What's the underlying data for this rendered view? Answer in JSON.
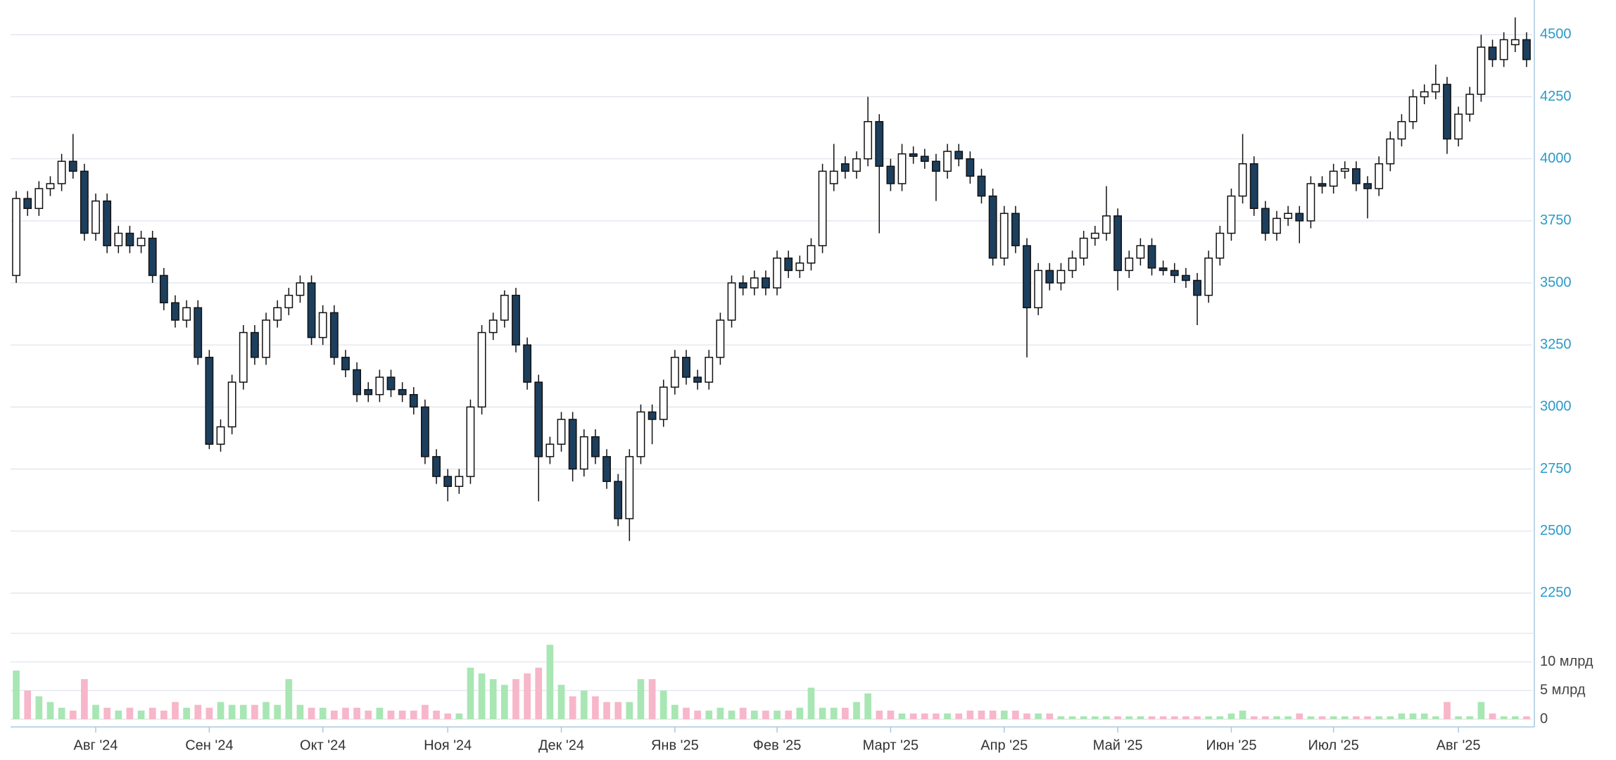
{
  "chart_data": [
    {
      "type": "candlestick",
      "categories": [
        null,
        null,
        null,
        null,
        null,
        null,
        null,
        "Авг '24",
        null,
        null,
        null,
        null,
        null,
        null,
        null,
        null,
        null,
        "Сен '24",
        null,
        null,
        null,
        null,
        null,
        null,
        null,
        null,
        null,
        "Окт '24",
        null,
        null,
        null,
        null,
        null,
        null,
        null,
        null,
        null,
        null,
        "Ноя '24",
        null,
        null,
        null,
        null,
        null,
        null,
        null,
        null,
        null,
        "Дек '24",
        null,
        null,
        null,
        null,
        null,
        null,
        null,
        null,
        null,
        "Янв '25",
        null,
        null,
        null,
        null,
        null,
        null,
        null,
        null,
        "Фев '25",
        null,
        null,
        null,
        null,
        null,
        null,
        null,
        null,
        null,
        "Март '25",
        null,
        null,
        null,
        null,
        null,
        null,
        null,
        null,
        null,
        "Апр '25",
        null,
        null,
        null,
        null,
        null,
        null,
        null,
        null,
        null,
        "Май '25",
        null,
        null,
        null,
        null,
        null,
        null,
        null,
        null,
        null,
        "Июн '25",
        null,
        null,
        null,
        null,
        null,
        null,
        null,
        null,
        "Июл '25",
        null,
        null,
        null,
        null,
        null,
        null,
        null,
        null,
        null,
        null,
        "Авг '25",
        null,
        null,
        null,
        null,
        null,
        null
      ],
      "open": [
        3530,
        3840,
        3800,
        3880,
        3900,
        3990,
        3950,
        3700,
        3830,
        3650,
        3700,
        3650,
        3680,
        3530,
        3420,
        3350,
        3400,
        3200,
        2850,
        2920,
        3100,
        3300,
        3200,
        3350,
        3400,
        3450,
        3500,
        3280,
        3380,
        3200,
        3150,
        3070,
        3050,
        3120,
        3070,
        3050,
        3000,
        2800,
        2720,
        2680,
        2720,
        3000,
        3300,
        3350,
        3450,
        3250,
        3100,
        2800,
        2850,
        2950,
        2750,
        2880,
        2800,
        2700,
        2550,
        2800,
        2980,
        2950,
        3080,
        3200,
        3120,
        3100,
        3200,
        3350,
        3500,
        3480,
        3520,
        3480,
        3600,
        3550,
        3580,
        3650,
        3900,
        3980,
        3950,
        4000,
        4150,
        3970,
        3900,
        4020,
        4010,
        3990,
        3950,
        4030,
        4000,
        3930,
        3850,
        3600,
        3780,
        3650,
        3400,
        3550,
        3500,
        3550,
        3600,
        3680,
        3700,
        3770,
        3550,
        3600,
        3650,
        3560,
        3550,
        3530,
        3510,
        3450,
        3600,
        3700,
        3850,
        3980,
        3800,
        3700,
        3760,
        3780,
        3750,
        3900,
        3890,
        3950,
        3960,
        3900,
        3880,
        3980,
        4080,
        4150,
        4250,
        4270,
        4300,
        4080,
        4180,
        4260,
        4450,
        4400,
        4460,
        4480
      ],
      "high": [
        3870,
        3870,
        3910,
        3930,
        4020,
        4100,
        3980,
        3860,
        3860,
        3730,
        3730,
        3710,
        3710,
        3560,
        3450,
        3430,
        3430,
        3230,
        2950,
        3130,
        3330,
        3330,
        3380,
        3430,
        3480,
        3530,
        3530,
        3410,
        3410,
        3230,
        3180,
        3100,
        3150,
        3150,
        3100,
        3080,
        3030,
        2830,
        2750,
        2750,
        3030,
        3330,
        3380,
        3470,
        3480,
        3280,
        3130,
        2880,
        2980,
        2980,
        2910,
        2910,
        2830,
        2730,
        2830,
        3010,
        3010,
        3110,
        3230,
        3230,
        3150,
        3230,
        3380,
        3530,
        3530,
        3550,
        3550,
        3630,
        3630,
        3610,
        3680,
        3980,
        4060,
        4010,
        4030,
        4250,
        4180,
        4000,
        4060,
        4050,
        4040,
        4020,
        4060,
        4060,
        4030,
        3960,
        3880,
        3810,
        3810,
        3680,
        3580,
        3580,
        3580,
        3630,
        3710,
        3730,
        3890,
        3800,
        3630,
        3680,
        3680,
        3590,
        3580,
        3560,
        3540,
        3630,
        3730,
        3880,
        4100,
        4010,
        3830,
        3790,
        3810,
        3810,
        3930,
        3930,
        3980,
        3990,
        3990,
        3930,
        4010,
        4110,
        4180,
        4280,
        4300,
        4380,
        4330,
        4210,
        4290,
        4500,
        4480,
        4510,
        4570,
        4510
      ],
      "low": [
        3500,
        3770,
        3770,
        3850,
        3870,
        3920,
        3670,
        3670,
        3620,
        3620,
        3620,
        3620,
        3500,
        3390,
        3320,
        3320,
        3170,
        2830,
        2820,
        2890,
        3070,
        3170,
        3170,
        3320,
        3370,
        3420,
        3250,
        3250,
        3170,
        3120,
        3020,
        3020,
        3020,
        3040,
        3020,
        2970,
        2770,
        2690,
        2620,
        2650,
        2690,
        2970,
        3270,
        3320,
        3220,
        3070,
        2620,
        2770,
        2820,
        2700,
        2720,
        2770,
        2670,
        2520,
        2460,
        2770,
        2850,
        2920,
        3050,
        3090,
        3070,
        3070,
        3170,
        3320,
        3450,
        3450,
        3450,
        3450,
        3520,
        3520,
        3550,
        3620,
        3870,
        3920,
        3920,
        3970,
        3700,
        3870,
        3870,
        3980,
        3960,
        3830,
        3920,
        3970,
        3900,
        3820,
        3570,
        3570,
        3620,
        3200,
        3370,
        3470,
        3470,
        3520,
        3570,
        3650,
        3670,
        3470,
        3520,
        3570,
        3530,
        3530,
        3500,
        3480,
        3330,
        3420,
        3570,
        3670,
        3820,
        3770,
        3670,
        3670,
        3730,
        3660,
        3720,
        3860,
        3860,
        3920,
        3870,
        3760,
        3850,
        3950,
        4050,
        4120,
        4220,
        4240,
        4020,
        4050,
        4150,
        4230,
        4370,
        4370,
        4430,
        4370
      ],
      "close": [
        3840,
        3800,
        3880,
        3900,
        3990,
        3950,
        3700,
        3830,
        3650,
        3700,
        3650,
        3680,
        3530,
        3420,
        3350,
        3400,
        3200,
        2850,
        2920,
        3100,
        3300,
        3200,
        3350,
        3400,
        3450,
        3500,
        3280,
        3380,
        3200,
        3150,
        3050,
        3050,
        3120,
        3070,
        3050,
        3000,
        2800,
        2720,
        2680,
        2720,
        3000,
        3300,
        3350,
        3450,
        3250,
        3100,
        2800,
        2850,
        2950,
        2750,
        2880,
        2800,
        2700,
        2550,
        2800,
        2980,
        2950,
        3080,
        3200,
        3120,
        3100,
        3200,
        3350,
        3500,
        3480,
        3520,
        3480,
        3600,
        3550,
        3580,
        3650,
        3950,
        3950,
        3950,
        4000,
        4150,
        3970,
        3900,
        4020,
        4010,
        3990,
        3950,
        4030,
        4000,
        3930,
        3850,
        3600,
        3780,
        3650,
        3400,
        3550,
        3500,
        3550,
        3600,
        3680,
        3700,
        3770,
        3550,
        3600,
        3650,
        3560,
        3550,
        3530,
        3510,
        3450,
        3600,
        3700,
        3850,
        3980,
        3800,
        3700,
        3760,
        3780,
        3750,
        3900,
        3890,
        3950,
        3960,
        3900,
        3880,
        3980,
        4080,
        4150,
        4250,
        4270,
        4300,
        4080,
        4180,
        4260,
        4450,
        4400,
        4480,
        4480,
        4400
      ],
      "ylim": [
        2190,
        4640
      ],
      "yticks": [
        2250,
        2500,
        2750,
        3000,
        3250,
        3500,
        3750,
        4000,
        4250,
        4500
      ],
      "grid": true,
      "up_color": "#ffffff",
      "down_color": "#1d3f5e"
    },
    {
      "type": "bar",
      "values": [
        8.5,
        5,
        4,
        3,
        2,
        1.5,
        7,
        2.5,
        2,
        1.5,
        2,
        1.5,
        2,
        1.5,
        3,
        2,
        2.5,
        2,
        3,
        2.5,
        2.5,
        2.5,
        3,
        2.5,
        7,
        2.5,
        2,
        2,
        1.5,
        2,
        2,
        1.5,
        2,
        1.5,
        1.5,
        1.5,
        2.5,
        1.5,
        1,
        1,
        9,
        8,
        7,
        6,
        7,
        8,
        9,
        13,
        6,
        4,
        5,
        4,
        3,
        3,
        3,
        7,
        7,
        5,
        2.5,
        2,
        1.5,
        1.5,
        2,
        1.5,
        2,
        1.5,
        1.5,
        1.5,
        1.5,
        2,
        5.5,
        2,
        2,
        2,
        3,
        4.5,
        1.5,
        1.5,
        1,
        1,
        1,
        1,
        1,
        1,
        1.5,
        1.5,
        1.5,
        1.5,
        1.5,
        1,
        1,
        1,
        0.5,
        0.5,
        0.5,
        0.5,
        0.5,
        0.5,
        0.5,
        0.5,
        0.5,
        0.5,
        0.5,
        0.5,
        0.5,
        0.5,
        0.5,
        1,
        1.5,
        0.5,
        0.5,
        0.5,
        0.5,
        1,
        0.5,
        0.5,
        0.5,
        0.5,
        0.5,
        0.5,
        0.5,
        0.5,
        1,
        1,
        1,
        0.5,
        3,
        0.5,
        0.5,
        3,
        1,
        0.5,
        0.5,
        0.5
      ],
      "ylim": [
        0,
        15
      ],
      "yticks": [
        0,
        {
          "value": 5,
          "label": "5 млрд"
        },
        {
          "value": 10,
          "label": "10 млрд"
        }
      ],
      "grid": true,
      "up_color": "#a8e6b4",
      "down_color": "#f7b6ca"
    }
  ]
}
